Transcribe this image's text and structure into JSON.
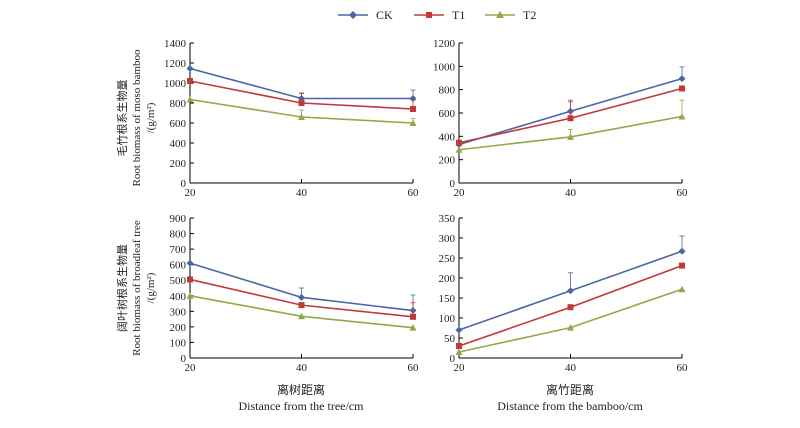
{
  "legend": [
    {
      "name": "CK",
      "color": "#4a66a8",
      "marker": "diamond"
    },
    {
      "name": "T1",
      "color": "#c0393b",
      "marker": "square"
    },
    {
      "name": "T2",
      "color": "#93a84a",
      "marker": "triangle"
    }
  ],
  "xlabels": {
    "left_cn": "离树距离",
    "left_en": "Distance from the tree/cm",
    "right_cn": "离竹距离",
    "right_en": "Distance from the bamboo/cm"
  },
  "ylabels": {
    "top_cn": "毛竹根系生物量",
    "top_en": "Root biomass of moso bamboo",
    "top_unit": "/(g/m²)",
    "bottom_cn": "阔叶树根系生物量",
    "bottom_en": "Root biomass of broadleaf tree",
    "bottom_unit": "/(g/m²)"
  },
  "chart_data": [
    {
      "type": "line",
      "x": [
        20,
        40,
        60
      ],
      "xlim": [
        20,
        60
      ],
      "ylim": [
        0,
        1400
      ],
      "yticks": [
        0,
        200,
        400,
        600,
        800,
        1000,
        1200,
        1400
      ],
      "series": [
        {
          "name": "CK",
          "values": [
            1145,
            845,
            845
          ],
          "err": [
            0,
            55,
            85
          ]
        },
        {
          "name": "T1",
          "values": [
            1020,
            800,
            740
          ],
          "err": [
            0,
            95,
            90
          ]
        },
        {
          "name": "T2",
          "values": [
            835,
            660,
            600
          ],
          "err": [
            0,
            70,
            45
          ]
        }
      ]
    },
    {
      "type": "line",
      "x": [
        20,
        40,
        60
      ],
      "xlim": [
        20,
        60
      ],
      "ylim": [
        0,
        1200
      ],
      "yticks": [
        0,
        200,
        400,
        600,
        800,
        1000,
        1200
      ],
      "series": [
        {
          "name": "CK",
          "values": [
            330,
            615,
            895
          ],
          "err": [
            0,
            80,
            100
          ]
        },
        {
          "name": "T1",
          "values": [
            345,
            555,
            810
          ],
          "err": [
            0,
            155,
            0
          ]
        },
        {
          "name": "T2",
          "values": [
            285,
            395,
            570
          ],
          "err": [
            0,
            65,
            140
          ]
        }
      ]
    },
    {
      "type": "line",
      "x": [
        20,
        40,
        60
      ],
      "xlim": [
        20,
        60
      ],
      "ylim": [
        0,
        900
      ],
      "yticks": [
        0,
        100,
        200,
        300,
        400,
        500,
        600,
        700,
        800,
        900
      ],
      "series": [
        {
          "name": "CK",
          "values": [
            610,
            390,
            305
          ],
          "err": [
            0,
            60,
            100
          ]
        },
        {
          "name": "T1",
          "values": [
            505,
            340,
            265
          ],
          "err": [
            0,
            0,
            90
          ]
        },
        {
          "name": "T2",
          "values": [
            400,
            268,
            195
          ],
          "err": [
            0,
            0,
            0
          ]
        }
      ]
    },
    {
      "type": "line",
      "x": [
        20,
        40,
        60
      ],
      "xlim": [
        20,
        60
      ],
      "ylim": [
        0,
        350
      ],
      "yticks": [
        0,
        50,
        100,
        150,
        200,
        250,
        300,
        350
      ],
      "series": [
        {
          "name": "CK",
          "values": [
            70,
            168,
            267
          ],
          "err": [
            0,
            45,
            38
          ]
        },
        {
          "name": "T1",
          "values": [
            30,
            127,
            231
          ],
          "err": [
            0,
            0,
            0
          ]
        },
        {
          "name": "T2",
          "values": [
            15,
            76,
            172
          ],
          "err": [
            0,
            0,
            0
          ]
        }
      ]
    }
  ]
}
